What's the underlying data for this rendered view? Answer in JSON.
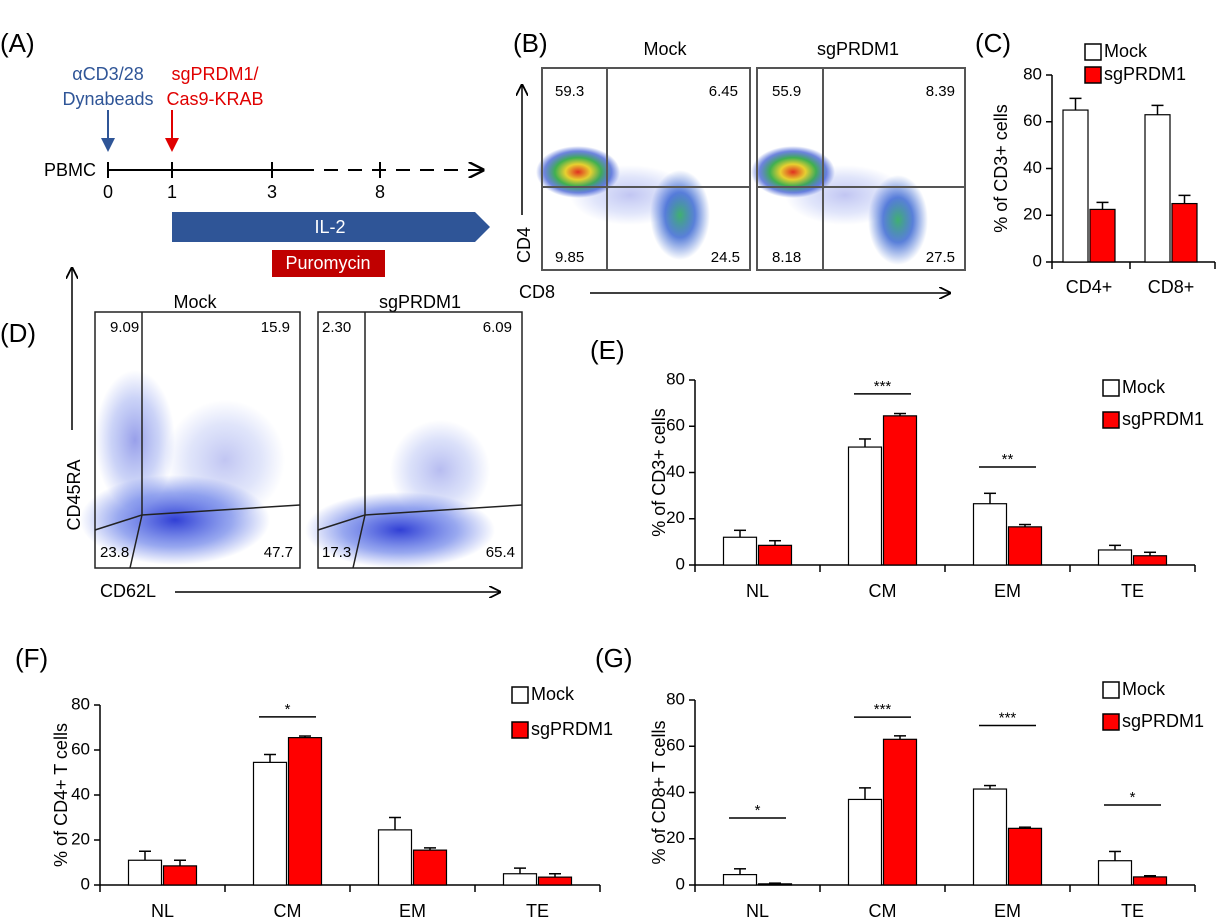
{
  "panel_a": {
    "label": "(A)",
    "stim1": [
      "αCD3/28",
      "Dynabeads"
    ],
    "stim2": [
      "sgPRDM1/",
      "Cas9-KRAB"
    ],
    "start": "PBMC",
    "days": [
      "0",
      "1",
      "3",
      "8"
    ],
    "il2": "IL-2",
    "drug": "Puromycin"
  },
  "panel_b": {
    "label": "(B)",
    "x_label": "CD8",
    "y_label": "CD4",
    "plots": [
      {
        "title": "Mock",
        "quadrants": [
          "59.3",
          "6.45",
          "9.85",
          "24.5"
        ]
      },
      {
        "title": "sgPRDM1",
        "quadrants": [
          "55.9",
          "8.39",
          "8.18",
          "27.5"
        ]
      }
    ]
  },
  "panel_d": {
    "label": "(D)",
    "x_label": "CD62L",
    "y_label": "CD45RA",
    "plots": [
      {
        "title": "Mock",
        "quadrants": [
          "9.09",
          "15.9",
          "23.8",
          "47.7"
        ]
      },
      {
        "title": "sgPRDM1",
        "quadrants": [
          "2.30",
          "6.09",
          "17.3",
          "65.4"
        ]
      }
    ]
  },
  "chart_data": [
    {
      "type": "bar",
      "label": "(C)",
      "ylabel": "% of CD3+ cells",
      "categories": [
        "CD4+",
        "CD8+"
      ],
      "series": [
        {
          "name": "Mock",
          "color": "#ffffff",
          "values": [
            65,
            63
          ],
          "errors": [
            5,
            4
          ]
        },
        {
          "name": "sgPRDM1",
          "color": "#ff0000",
          "values": [
            22.5,
            25
          ],
          "errors": [
            3,
            3.5
          ]
        }
      ],
      "ylim": [
        0,
        80
      ],
      "yticks": [
        0,
        20,
        40,
        60,
        80
      ]
    },
    {
      "type": "bar",
      "label": "(E)",
      "ylabel": "% of CD3+ cells",
      "categories": [
        "NL",
        "CM",
        "EM",
        "TE"
      ],
      "series": [
        {
          "name": "Mock",
          "color": "#ffffff",
          "values": [
            12,
            51,
            26.5,
            6.5
          ],
          "errors": [
            3,
            3.5,
            4.5,
            2
          ]
        },
        {
          "name": "sgPRDM1",
          "color": "#ff0000",
          "values": [
            8.5,
            64.5,
            16.5,
            4
          ],
          "errors": [
            2,
            1,
            1,
            1.5
          ]
        }
      ],
      "significance": [
        null,
        "***",
        "**",
        null
      ],
      "significance_y": [
        null,
        74,
        42.4,
        null
      ],
      "ylim": [
        0,
        80
      ],
      "yticks": [
        0,
        20,
        40,
        60,
        80
      ]
    },
    {
      "type": "bar",
      "label": "(F)",
      "ylabel": "% of CD4+ T cells",
      "categories": [
        "NL",
        "CM",
        "EM",
        "TE"
      ],
      "series": [
        {
          "name": "Mock",
          "color": "#ffffff",
          "values": [
            11,
            54.5,
            24.5,
            5
          ],
          "errors": [
            4,
            3.5,
            5.5,
            2.5
          ]
        },
        {
          "name": "sgPRDM1",
          "color": "#ff0000",
          "values": [
            8.5,
            65.5,
            15.5,
            3.5
          ],
          "errors": [
            2.5,
            0.7,
            1,
            1.5
          ]
        }
      ],
      "significance": [
        null,
        "*",
        null,
        null
      ],
      "significance_y": [
        null,
        74.7,
        null,
        null
      ],
      "ylim": [
        0,
        80
      ],
      "yticks": [
        0,
        20,
        40,
        60,
        80
      ]
    },
    {
      "type": "bar",
      "label": "(G)",
      "ylabel": "% of CD8+ T cells",
      "categories": [
        "NL",
        "CM",
        "EM",
        "TE"
      ],
      "series": [
        {
          "name": "Mock",
          "color": "#ffffff",
          "values": [
            4.5,
            37,
            41.5,
            10.5
          ],
          "errors": [
            2.5,
            5,
            1.5,
            4
          ]
        },
        {
          "name": "sgPRDM1",
          "color": "#ff0000",
          "values": [
            0.5,
            63,
            24.5,
            3.5
          ],
          "errors": [
            0.3,
            1.5,
            0.5,
            0.5
          ]
        }
      ],
      "significance": [
        "*",
        "***",
        "***",
        "*"
      ],
      "significance_y": [
        29,
        72.6,
        69,
        34.6
      ],
      "ylim": [
        0,
        80
      ],
      "yticks": [
        0,
        20,
        40,
        60,
        80
      ]
    }
  ]
}
